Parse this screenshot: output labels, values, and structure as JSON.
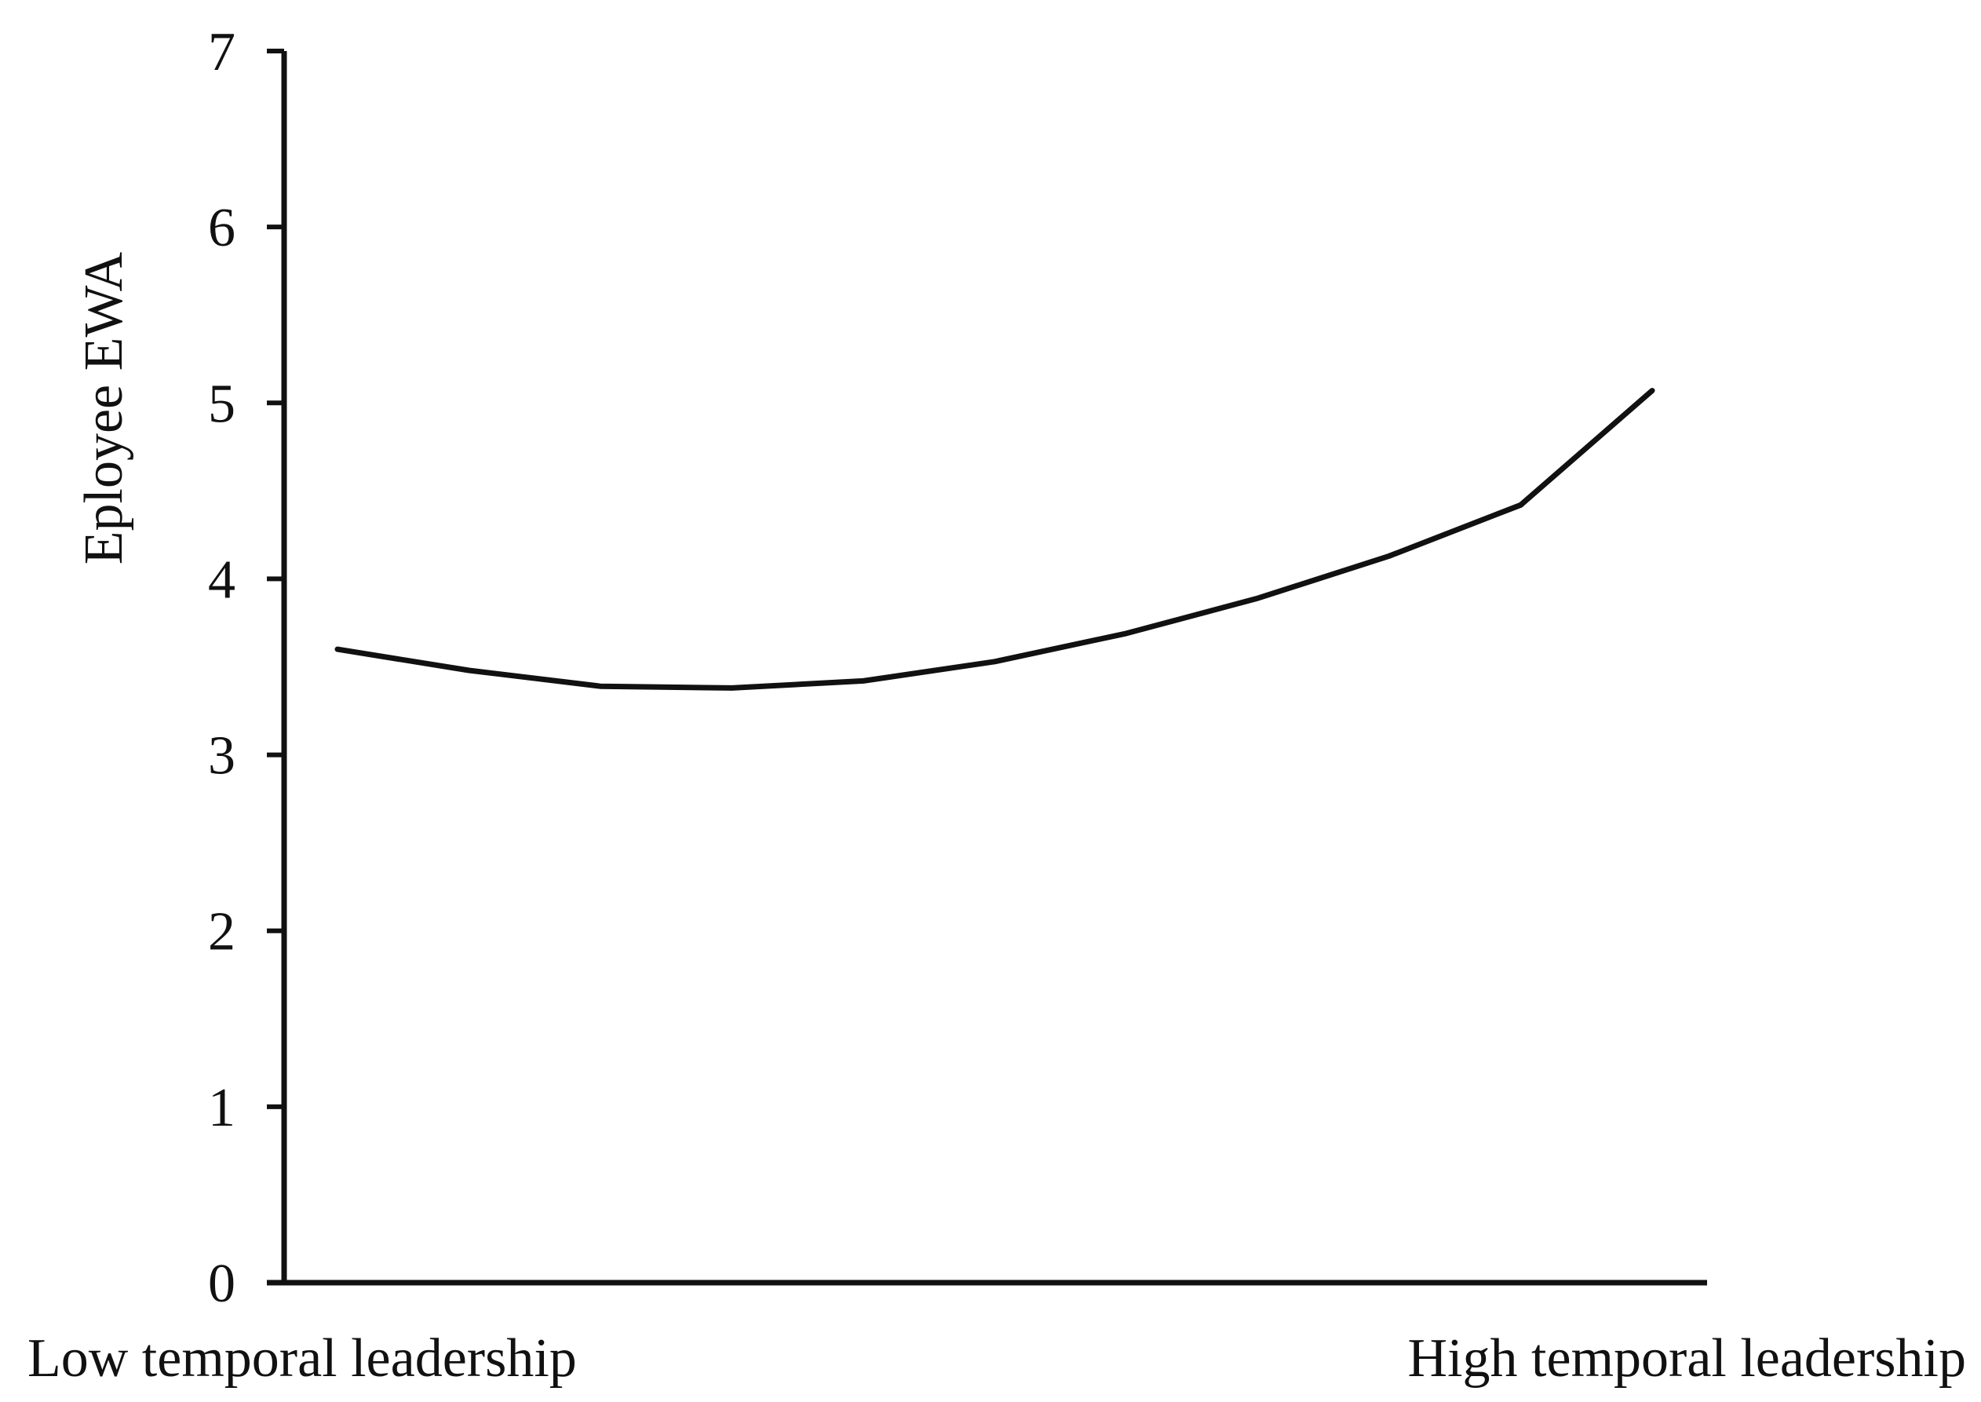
{
  "chart_data": {
    "type": "line",
    "title": "",
    "xlabel": "",
    "ylabel": "Eployee EWA",
    "ylim": [
      0,
      7
    ],
    "yticks": [
      0,
      1,
      2,
      3,
      4,
      5,
      6,
      7
    ],
    "x_endpoint_labels": [
      "Low temporal leadership",
      "High temporal leadership"
    ],
    "grid": false,
    "legend": "none",
    "colors": {
      "line": "#111111",
      "axis": "#111111"
    },
    "x": [
      0,
      0.1,
      0.2,
      0.3,
      0.4,
      0.5,
      0.6,
      0.7,
      0.8,
      0.9,
      1
    ],
    "series": [
      {
        "values": [
          3.6,
          3.48,
          3.39,
          3.38,
          3.42,
          3.53,
          3.69,
          3.89,
          4.13,
          4.42,
          5.07
        ]
      }
    ]
  }
}
